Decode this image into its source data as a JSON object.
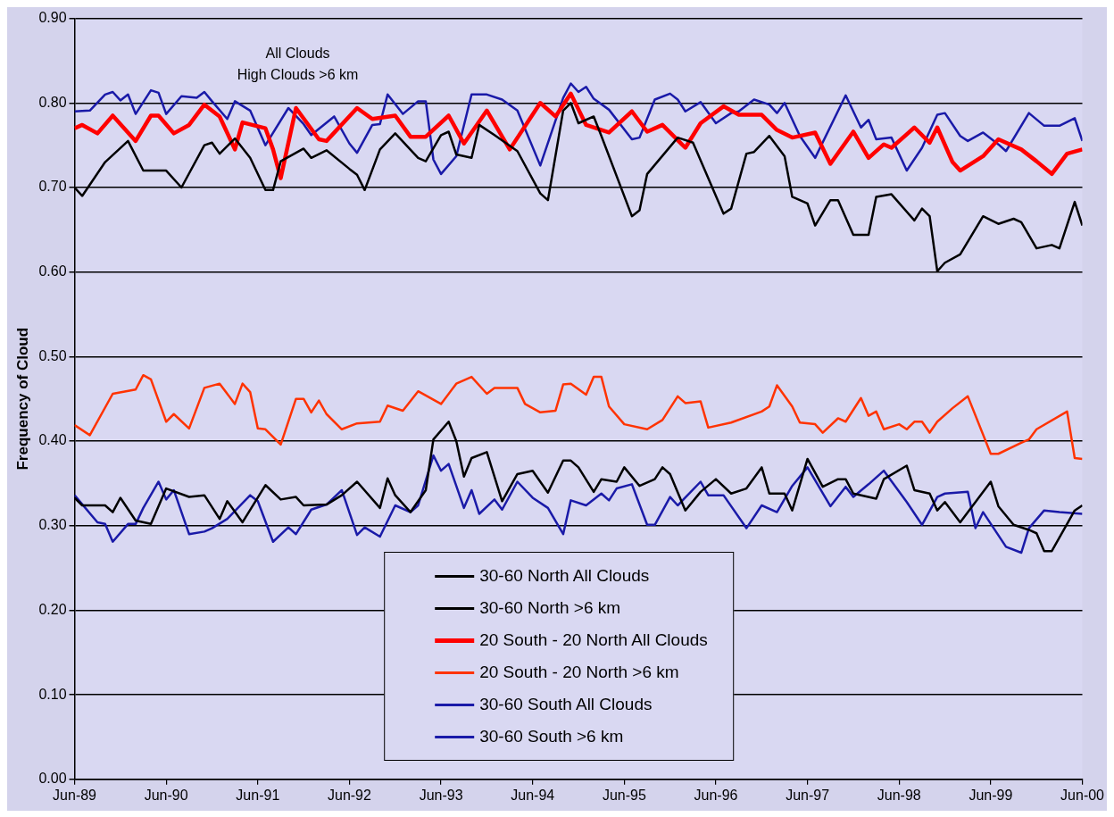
{
  "chart_data": {
    "type": "line",
    "ylabel": "Frequency of Cloud",
    "xlim": [
      "1989-06",
      "2000-06"
    ],
    "xticks": [
      {
        "value": "1989-06",
        "label": "Jun-89"
      },
      {
        "value": "1990-06",
        "label": "Jun-90"
      },
      {
        "value": "1991-06",
        "label": "Jun-91"
      },
      {
        "value": "1992-06",
        "label": "Jun-92"
      },
      {
        "value": "1993-06",
        "label": "Jun-93"
      },
      {
        "value": "1994-06",
        "label": "Jun-94"
      },
      {
        "value": "1995-06",
        "label": "Jun-95"
      },
      {
        "value": "1996-06",
        "label": "Jun-96"
      },
      {
        "value": "1997-06",
        "label": "Jun-97"
      },
      {
        "value": "1998-06",
        "label": "Jun-98"
      },
      {
        "value": "1999-06",
        "label": "Jun-99"
      },
      {
        "value": "2000-06",
        "label": "Jun-00"
      }
    ],
    "ylim": [
      0,
      0.9
    ],
    "yticks": [
      {
        "value": 0,
        "label": "0.00"
      },
      {
        "value": 0.1,
        "label": "0.10"
      },
      {
        "value": 0.2,
        "label": "0.20"
      },
      {
        "value": 0.3,
        "label": "0.30"
      },
      {
        "value": 0.4,
        "label": "0.40"
      },
      {
        "value": 0.5,
        "label": "0.50"
      },
      {
        "value": 0.6,
        "label": "0.60"
      },
      {
        "value": 0.7,
        "label": "0.70"
      },
      {
        "value": 0.8,
        "label": "0.80"
      },
      {
        "value": 0.9,
        "label": "0.90"
      }
    ],
    "grid": "y",
    "legend": "bottom",
    "marker": "none",
    "annotations": [
      "All Clouds",
      "High Clouds >6 km"
    ],
    "series": [
      {
        "name": "30-60 North All Clouds",
        "color": "#000000",
        "x": [
          "1989-06",
          "1989-07",
          "1989-10",
          "1990-01",
          "1990-03",
          "1990-06",
          "1990-08",
          "1990-11",
          "1990-12",
          "1991-01",
          "1991-03",
          "1991-05",
          "1991-07",
          "1991-08",
          "1991-09",
          "1991-12",
          "1992-01",
          "1992-03",
          "1992-06",
          "1992-07",
          "1992-08",
          "1992-10",
          "1992-12",
          "1993-03",
          "1993-04",
          "1993-06",
          "1993-07",
          "1993-08",
          "1993-10",
          "1993-11",
          "1994-01",
          "1994-04",
          "1994-07",
          "1994-08",
          "1994-10",
          "1994-11",
          "1994-12",
          "1995-02",
          "1995-03",
          "1995-07",
          "1995-08",
          "1995-09",
          "1996-01",
          "1996-03",
          "1996-07",
          "1996-08",
          "1996-10",
          "1996-11",
          "1997-01",
          "1997-03",
          "1997-04",
          "1997-06",
          "1997-07",
          "1997-09",
          "1997-10",
          "1997-12",
          "1998-02",
          "1998-03",
          "1998-05",
          "1998-08",
          "1998-09",
          "1998-10",
          "1998-11",
          "1998-12",
          "1999-02",
          "1999-05",
          "1999-07",
          "1999-09",
          "1999-10",
          "1999-12",
          "2000-02",
          "2000-03",
          "2000-05",
          "2000-06"
        ],
        "values": [
          0.7,
          0.69,
          0.73,
          0.755,
          0.72,
          0.72,
          0.7,
          0.75,
          0.753,
          0.74,
          0.758,
          0.735,
          0.697,
          0.697,
          0.731,
          0.746,
          0.735,
          0.744,
          0.722,
          0.715,
          0.697,
          0.745,
          0.764,
          0.735,
          0.731,
          0.762,
          0.766,
          0.739,
          0.735,
          0.774,
          0.762,
          0.743,
          0.693,
          0.685,
          0.791,
          0.8,
          0.776,
          0.784,
          0.761,
          0.666,
          0.673,
          0.716,
          0.759,
          0.753,
          0.669,
          0.675,
          0.74,
          0.742,
          0.761,
          0.737,
          0.689,
          0.681,
          0.655,
          0.685,
          0.685,
          0.644,
          0.644,
          0.689,
          0.692,
          0.661,
          0.675,
          0.666,
          0.601,
          0.611,
          0.621,
          0.666,
          0.657,
          0.663,
          0.659,
          0.628,
          0.632,
          0.628,
          0.683,
          0.655
        ]
      },
      {
        "name": "30-60 North >6 km",
        "color": "#000000",
        "x": [
          "1989-06",
          "1989-07",
          "1989-10",
          "1989-11",
          "1989-12",
          "1990-02",
          "1990-04",
          "1990-06",
          "1990-09",
          "1990-11",
          "1991-01",
          "1991-02",
          "1991-04",
          "1991-07",
          "1991-09",
          "1991-11",
          "1991-12",
          "1992-03",
          "1992-05",
          "1992-07",
          "1992-10",
          "1992-11",
          "1992-12",
          "1993-02",
          "1993-04",
          "1993-05",
          "1993-07",
          "1993-08",
          "1993-09",
          "1993-10",
          "1993-12",
          "1994-02",
          "1994-04",
          "1994-06",
          "1994-08",
          "1994-10",
          "1994-11",
          "1994-12",
          "1995-02",
          "1995-03",
          "1995-05",
          "1995-06",
          "1995-08",
          "1995-10",
          "1995-11",
          "1995-12",
          "1996-02",
          "1996-04",
          "1996-06",
          "1996-08",
          "1996-10",
          "1996-12",
          "1997-01",
          "1997-03",
          "1997-04",
          "1997-06",
          "1997-08",
          "1997-10",
          "1997-11",
          "1997-12",
          "1998-03",
          "1998-04",
          "1998-07",
          "1998-08",
          "1998-10",
          "1998-11",
          "1998-12",
          "1999-02",
          "1999-06",
          "1999-07",
          "1999-09",
          "1999-11",
          "1999-12",
          "2000-01",
          "2000-02",
          "2000-05",
          "2000-06"
        ],
        "values": [
          0.333,
          0.324,
          0.324,
          0.316,
          0.333,
          0.306,
          0.302,
          0.344,
          0.334,
          0.336,
          0.308,
          0.329,
          0.304,
          0.348,
          0.331,
          0.334,
          0.324,
          0.325,
          0.336,
          0.352,
          0.321,
          0.356,
          0.336,
          0.316,
          0.342,
          0.402,
          0.423,
          0.4,
          0.358,
          0.38,
          0.387,
          0.329,
          0.361,
          0.365,
          0.339,
          0.377,
          0.377,
          0.369,
          0.34,
          0.355,
          0.352,
          0.369,
          0.347,
          0.355,
          0.369,
          0.361,
          0.318,
          0.34,
          0.355,
          0.338,
          0.344,
          0.369,
          0.338,
          0.338,
          0.318,
          0.379,
          0.346,
          0.355,
          0.355,
          0.338,
          0.332,
          0.355,
          0.371,
          0.342,
          0.338,
          0.318,
          0.328,
          0.304,
          0.352,
          0.323,
          0.301,
          0.295,
          0.291,
          0.27,
          0.27,
          0.318,
          0.324
        ]
      },
      {
        "name": "20 South - 20 North All Clouds",
        "color": "#ff0000",
        "x": [
          "1989-06",
          "1989-07",
          "1989-09",
          "1989-11",
          "1990-02",
          "1990-04",
          "1990-05",
          "1990-07",
          "1990-09",
          "1990-11",
          "1991-01",
          "1991-03",
          "1991-04",
          "1991-07",
          "1991-08",
          "1991-09",
          "1991-11",
          "1992-02",
          "1992-03",
          "1992-07",
          "1992-09",
          "1992-12",
          "1993-02",
          "1993-04",
          "1993-07",
          "1993-09",
          "1993-12",
          "1994-03",
          "1994-07",
          "1994-09",
          "1994-11",
          "1995-01",
          "1995-04",
          "1995-07",
          "1995-09",
          "1995-11",
          "1996-02",
          "1996-04",
          "1996-07",
          "1996-09",
          "1996-12",
          "1997-02",
          "1997-04",
          "1997-07",
          "1997-09",
          "1997-12",
          "1998-02",
          "1998-04",
          "1998-05",
          "1998-08",
          "1998-10",
          "1998-11",
          "1999-01",
          "1999-02",
          "1999-05",
          "1999-07",
          "1999-10",
          "1999-12",
          "2000-02",
          "2000-04",
          "2000-06"
        ],
        "values": [
          0.77,
          0.774,
          0.764,
          0.785,
          0.755,
          0.785,
          0.785,
          0.764,
          0.774,
          0.798,
          0.784,
          0.745,
          0.777,
          0.77,
          0.745,
          0.711,
          0.794,
          0.757,
          0.755,
          0.794,
          0.781,
          0.785,
          0.76,
          0.76,
          0.785,
          0.752,
          0.791,
          0.745,
          0.8,
          0.784,
          0.811,
          0.774,
          0.765,
          0.79,
          0.766,
          0.774,
          0.747,
          0.776,
          0.796,
          0.786,
          0.786,
          0.768,
          0.759,
          0.765,
          0.728,
          0.766,
          0.735,
          0.751,
          0.747,
          0.771,
          0.753,
          0.771,
          0.73,
          0.72,
          0.737,
          0.757,
          0.745,
          0.731,
          0.716,
          0.74,
          0.745
        ]
      },
      {
        "name": "20 South - 20 North >6 km",
        "color": "#ff3300",
        "x": [
          "1989-06",
          "1989-08",
          "1989-11",
          "1990-02",
          "1990-03",
          "1990-04",
          "1990-06",
          "1990-07",
          "1990-09",
          "1990-11",
          "1991-01",
          "1991-03",
          "1991-04",
          "1991-05",
          "1991-06",
          "1991-07",
          "1991-09",
          "1991-11",
          "1991-12",
          "1992-01",
          "1992-02",
          "1992-03",
          "1992-05",
          "1992-07",
          "1992-10",
          "1992-11",
          "1993-01",
          "1993-03",
          "1993-06",
          "1993-08",
          "1993-10",
          "1993-12",
          "1994-01",
          "1994-04",
          "1994-05",
          "1994-07",
          "1994-09",
          "1994-10",
          "1994-11",
          "1995-01",
          "1995-02",
          "1995-03",
          "1995-04",
          "1995-06",
          "1995-09",
          "1995-11",
          "1996-01",
          "1996-02",
          "1996-04",
          "1996-05",
          "1996-08",
          "1996-12",
          "1997-01",
          "1997-02",
          "1997-04",
          "1997-05",
          "1997-07",
          "1997-08",
          "1997-10",
          "1997-11",
          "1998-01",
          "1998-02",
          "1998-03",
          "1998-04",
          "1998-06",
          "1998-07",
          "1998-08",
          "1998-09",
          "1998-10",
          "1998-11",
          "1999-01",
          "1999-03",
          "1999-06",
          "1999-07",
          "1999-10",
          "1999-11",
          "1999-12",
          "2000-04",
          "2000-05",
          "2000-06"
        ],
        "values": [
          0.419,
          0.407,
          0.456,
          0.461,
          0.478,
          0.473,
          0.423,
          0.432,
          0.415,
          0.463,
          0.468,
          0.444,
          0.468,
          0.458,
          0.415,
          0.414,
          0.396,
          0.45,
          0.45,
          0.434,
          0.448,
          0.432,
          0.414,
          0.421,
          0.423,
          0.442,
          0.436,
          0.459,
          0.444,
          0.468,
          0.476,
          0.456,
          0.463,
          0.463,
          0.444,
          0.434,
          0.436,
          0.467,
          0.468,
          0.455,
          0.476,
          0.476,
          0.441,
          0.42,
          0.414,
          0.425,
          0.453,
          0.445,
          0.447,
          0.416,
          0.422,
          0.435,
          0.441,
          0.466,
          0.441,
          0.422,
          0.42,
          0.41,
          0.427,
          0.423,
          0.451,
          0.43,
          0.435,
          0.414,
          0.42,
          0.414,
          0.423,
          0.423,
          0.41,
          0.423,
          0.439,
          0.453,
          0.385,
          0.385,
          0.398,
          0.402,
          0.414,
          0.435,
          0.38,
          0.379
        ]
      },
      {
        "name": "30-60 South All Clouds",
        "color": "#1a1aa8",
        "x": [
          "1989-06",
          "1989-08",
          "1989-10",
          "1989-11",
          "1989-12",
          "1990-01",
          "1990-02",
          "1990-04",
          "1990-05",
          "1990-06",
          "1990-08",
          "1990-10",
          "1990-11",
          "1990-12",
          "1991-02",
          "1991-03",
          "1991-05",
          "1991-07",
          "1991-10",
          "1991-12",
          "1992-01",
          "1992-04",
          "1992-06",
          "1992-07",
          "1992-09",
          "1992-10",
          "1992-11",
          "1993-01",
          "1993-03",
          "1993-04",
          "1993-05",
          "1993-06",
          "1993-08",
          "1993-10",
          "1993-12",
          "1994-02",
          "1994-04",
          "1994-07",
          "1994-10",
          "1994-11",
          "1994-12",
          "1995-01",
          "1995-02",
          "1995-04",
          "1995-07",
          "1995-08",
          "1995-10",
          "1995-12",
          "1996-01",
          "1996-02",
          "1996-04",
          "1996-06",
          "1996-08",
          "1996-09",
          "1996-11",
          "1997-01",
          "1997-02",
          "1997-03",
          "1997-05",
          "1997-07",
          "1997-11",
          "1998-01",
          "1998-02",
          "1998-03",
          "1998-05",
          "1998-07",
          "1998-09",
          "1998-11",
          "1998-12",
          "1999-02",
          "1999-03",
          "1999-05",
          "1999-07",
          "1999-08",
          "1999-11",
          "2000-01",
          "2000-03",
          "2000-05",
          "2000-06"
        ],
        "values": [
          0.79,
          0.791,
          0.81,
          0.813,
          0.803,
          0.81,
          0.787,
          0.815,
          0.812,
          0.787,
          0.808,
          0.806,
          0.813,
          0.802,
          0.781,
          0.802,
          0.791,
          0.75,
          0.794,
          0.775,
          0.762,
          0.784,
          0.752,
          0.741,
          0.774,
          0.775,
          0.81,
          0.787,
          0.802,
          0.802,
          0.733,
          0.716,
          0.737,
          0.81,
          0.81,
          0.804,
          0.791,
          0.726,
          0.806,
          0.823,
          0.813,
          0.819,
          0.805,
          0.792,
          0.757,
          0.759,
          0.804,
          0.811,
          0.804,
          0.79,
          0.801,
          0.776,
          0.788,
          0.79,
          0.804,
          0.798,
          0.788,
          0.8,
          0.761,
          0.735,
          0.809,
          0.771,
          0.78,
          0.757,
          0.759,
          0.72,
          0.747,
          0.786,
          0.788,
          0.761,
          0.755,
          0.765,
          0.751,
          0.743,
          0.788,
          0.773,
          0.773,
          0.782,
          0.755
        ]
      },
      {
        "name": "30-60 South >6 km",
        "color": "#1a1aa8",
        "x": [
          "1989-06",
          "1989-09",
          "1989-10",
          "1989-11",
          "1990-01",
          "1990-02",
          "1990-03",
          "1990-05",
          "1990-06",
          "1990-07",
          "1990-09",
          "1990-11",
          "1990-12",
          "1991-02",
          "1991-05",
          "1991-06",
          "1991-08",
          "1991-10",
          "1991-11",
          "1992-01",
          "1992-03",
          "1992-05",
          "1992-07",
          "1992-08",
          "1992-10",
          "1992-12",
          "1993-02",
          "1993-03",
          "1993-05",
          "1993-06",
          "1993-07",
          "1993-09",
          "1993-10",
          "1993-11",
          "1994-01",
          "1994-02",
          "1994-04",
          "1994-06",
          "1994-08",
          "1994-10",
          "1994-11",
          "1995-01",
          "1995-03",
          "1995-04",
          "1995-05",
          "1995-07",
          "1995-09",
          "1995-10",
          "1995-12",
          "1996-01",
          "1996-04",
          "1996-05",
          "1996-07",
          "1996-10",
          "1996-12",
          "1997-02",
          "1997-04",
          "1997-06",
          "1997-09",
          "1997-11",
          "1997-12",
          "1998-02",
          "1998-04",
          "1998-07",
          "1998-09",
          "1998-11",
          "1998-12",
          "1999-03",
          "1999-04",
          "1999-05",
          "1999-08",
          "1999-10",
          "1999-11",
          "2000-01",
          "2000-03",
          "2000-06"
        ],
        "values": [
          0.336,
          0.304,
          0.302,
          0.281,
          0.302,
          0.302,
          0.321,
          0.352,
          0.331,
          0.342,
          0.29,
          0.293,
          0.297,
          0.308,
          0.336,
          0.329,
          0.281,
          0.298,
          0.29,
          0.319,
          0.325,
          0.342,
          0.289,
          0.298,
          0.287,
          0.324,
          0.316,
          0.324,
          0.383,
          0.365,
          0.373,
          0.321,
          0.342,
          0.314,
          0.331,
          0.319,
          0.352,
          0.333,
          0.321,
          0.29,
          0.33,
          0.324,
          0.338,
          0.33,
          0.344,
          0.349,
          0.301,
          0.301,
          0.334,
          0.324,
          0.352,
          0.336,
          0.336,
          0.297,
          0.324,
          0.316,
          0.347,
          0.369,
          0.323,
          0.346,
          0.334,
          0.349,
          0.365,
          0.328,
          0.301,
          0.334,
          0.338,
          0.34,
          0.297,
          0.316,
          0.275,
          0.268,
          0.297,
          0.318,
          0.316,
          0.314
        ]
      }
    ]
  }
}
